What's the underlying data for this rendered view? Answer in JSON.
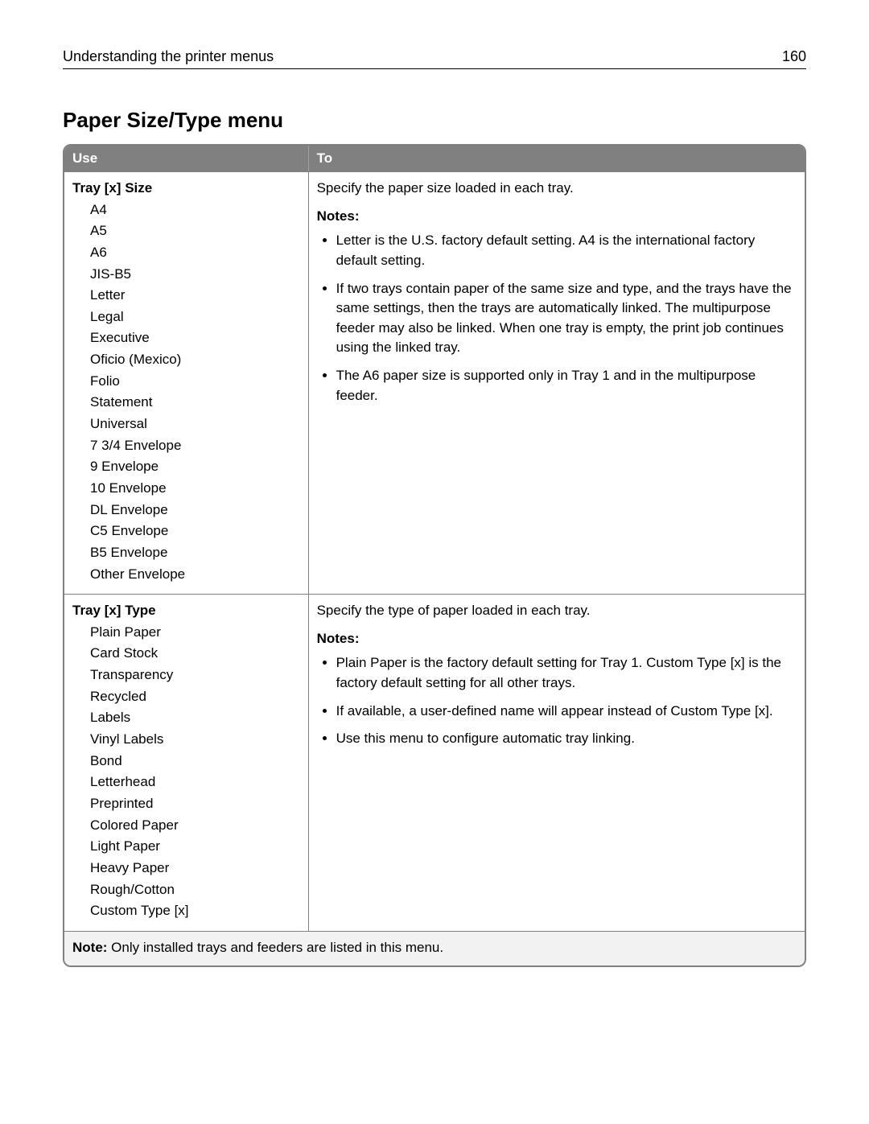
{
  "header": {
    "title": "Understanding the printer menus",
    "page_number": "160"
  },
  "section_title": "Paper Size/Type menu",
  "table": {
    "columns": {
      "use": "Use",
      "to": "To"
    },
    "rows": [
      {
        "use_heading": "Tray [x] Size",
        "use_options": [
          "A4",
          "A5",
          "A6",
          "JIS-B5",
          "Letter",
          "Legal",
          "Executive",
          "Oficio (Mexico)",
          "Folio",
          "Statement",
          "Universal",
          "7 3/4 Envelope",
          "9 Envelope",
          "10 Envelope",
          "DL Envelope",
          "C5 Envelope",
          "B5 Envelope",
          "Other Envelope"
        ],
        "to_intro": "Specify the paper size loaded in each tray.",
        "notes_label": "Notes:",
        "to_notes": [
          "Letter is the U.S. factory default setting. A4 is the international factory default setting.",
          "If two trays contain paper of the same size and type, and the trays have the same settings, then the trays are automatically linked. The multipurpose feeder may also be linked. When one tray is empty, the print job continues using the linked tray.",
          "The A6 paper size is supported only in Tray 1 and in the multipurpose feeder."
        ]
      },
      {
        "use_heading": "Tray [x] Type",
        "use_options": [
          "Plain Paper",
          "Card Stock",
          "Transparency",
          "Recycled",
          "Labels",
          "Vinyl Labels",
          "Bond",
          "Letterhead",
          "Preprinted",
          "Colored Paper",
          "Light Paper",
          "Heavy Paper",
          "Rough/Cotton",
          "Custom Type [x]"
        ],
        "to_intro": "Specify the type of paper loaded in each tray.",
        "notes_label": "Notes:",
        "to_notes": [
          "Plain Paper is the factory default setting for Tray 1. Custom Type [x] is the factory default setting for all other trays.",
          "If available, a user‑defined name will appear instead of Custom Type [x].",
          "Use this menu to configure automatic tray linking."
        ]
      }
    ],
    "footnote_label": "Note:",
    "footnote_text": " Only installed trays and feeders are listed in this menu."
  }
}
